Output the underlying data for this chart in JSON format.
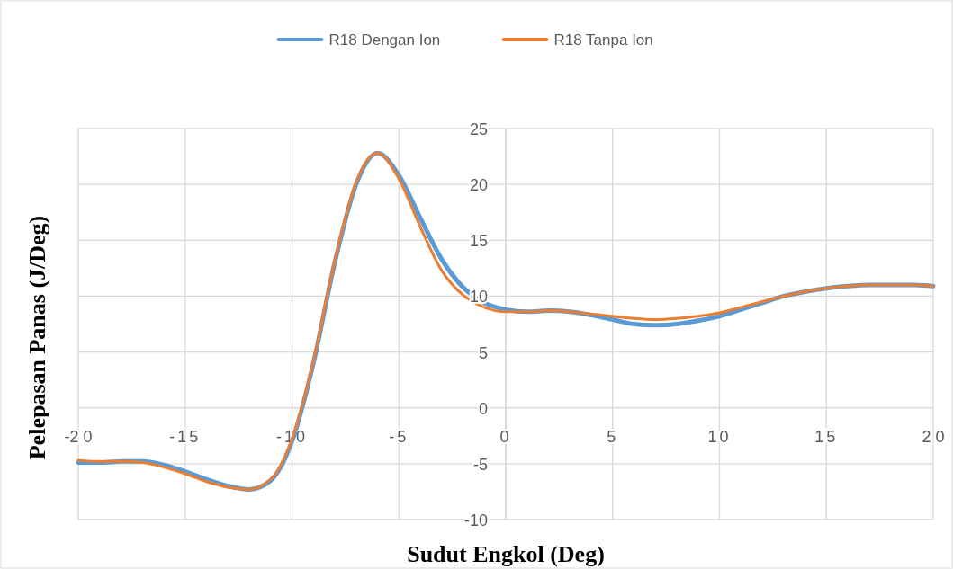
{
  "chart_data": {
    "type": "line",
    "xlabel": "Sudut Engkol (Deg)",
    "ylabel": "Pelepasan Panas (J/Deg)",
    "x": [
      -20,
      -19,
      -18,
      -17,
      -16,
      -15,
      -14,
      -13,
      -12,
      -11,
      -10,
      -9,
      -8,
      -7,
      -6,
      -5,
      -4,
      -3,
      -2,
      -1,
      0,
      1,
      2,
      3,
      4,
      5,
      6,
      7,
      8,
      9,
      10,
      11,
      12,
      13,
      14,
      15,
      16,
      17,
      18,
      19,
      20
    ],
    "series": [
      {
        "name": "R18 Dengan Ion",
        "color": "#5b9bd5",
        "values": [
          -4.9,
          -4.9,
          -4.8,
          -4.8,
          -5.1,
          -5.7,
          -6.4,
          -7.0,
          -7.3,
          -6.5,
          -3.0,
          4.0,
          13.0,
          20.0,
          22.8,
          20.8,
          17.0,
          13.3,
          10.8,
          9.4,
          8.8,
          8.6,
          8.7,
          8.6,
          8.3,
          7.9,
          7.5,
          7.4,
          7.5,
          7.8,
          8.2,
          8.8,
          9.4,
          10.0,
          10.4,
          10.7,
          10.9,
          11.0,
          11.0,
          11.0,
          10.9
        ]
      },
      {
        "name": "R18 Tanpa Ion",
        "color": "#ed7d31",
        "values": [
          -4.7,
          -4.8,
          -4.8,
          -4.9,
          -5.3,
          -5.9,
          -6.6,
          -7.1,
          -7.3,
          -6.4,
          -2.8,
          4.2,
          13.2,
          20.2,
          22.8,
          20.5,
          16.2,
          12.3,
          10.1,
          9.0,
          8.6,
          8.6,
          8.7,
          8.6,
          8.4,
          8.2,
          8.0,
          7.9,
          8.0,
          8.2,
          8.5,
          9.0,
          9.5,
          10.0,
          10.4,
          10.7,
          10.9,
          11.0,
          11.0,
          11.0,
          10.9
        ]
      }
    ],
    "xlim": [
      -20,
      20
    ],
    "xticks": [
      {
        "value": -20,
        "label": "-2 0"
      },
      -15,
      -10,
      -5,
      0,
      5,
      10,
      15,
      {
        "value": 20,
        "label": "2 0"
      }
    ],
    "ylim": [
      -10,
      25
    ],
    "yticks": [
      -10,
      -5,
      0,
      5,
      10,
      15,
      20,
      25
    ],
    "grid": true,
    "legend": "top",
    "marker": "none",
    "line_style": "solid"
  }
}
